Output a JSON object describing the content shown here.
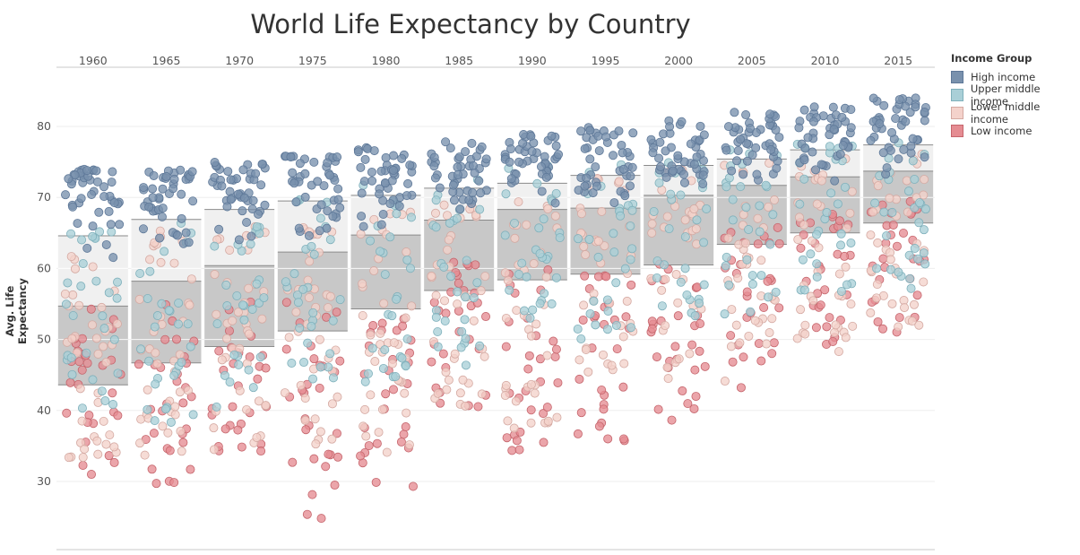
{
  "chart_data": {
    "type": "scatter",
    "title": "World Life Expectancy by Country",
    "xlabel": "",
    "ylabel": "Avg. Life Expectancy",
    "ylim": [
      22,
      88
    ],
    "yticks": [
      30,
      40,
      50,
      60,
      70,
      80
    ],
    "grid": true,
    "legend_placement": "right",
    "legend_title": "Income Group",
    "years": [
      "1960",
      "1965",
      "1970",
      "1975",
      "1980",
      "1985",
      "1990",
      "1995",
      "2000",
      "2005",
      "2010",
      "2015"
    ],
    "series": [
      {
        "name": "High income",
        "color": "#7991ad",
        "stroke": "#5e7898"
      },
      {
        "name": "Upper middle income",
        "color": "#a9cfd7",
        "stroke": "#7fb0bb"
      },
      {
        "name": "Lower middle income",
        "color": "#f4d2cb",
        "stroke": "#d4a9a2"
      },
      {
        "name": "Low income",
        "color": "#e58c92",
        "stroke": "#c5656c"
      }
    ],
    "boxes": [
      {
        "year": "1960",
        "q1": 43.6,
        "median": 54.7,
        "q3": 64.6
      },
      {
        "year": "1965",
        "q1": 46.7,
        "median": 58.2,
        "q3": 66.9
      },
      {
        "year": "1970",
        "q1": 49.0,
        "median": 60.4,
        "q3": 68.3
      },
      {
        "year": "1975",
        "q1": 51.2,
        "median": 62.3,
        "q3": 69.5
      },
      {
        "year": "1980",
        "q1": 54.3,
        "median": 64.7,
        "q3": 70.3
      },
      {
        "year": "1985",
        "q1": 56.9,
        "median": 66.8,
        "q3": 71.3
      },
      {
        "year": "1990",
        "q1": 58.4,
        "median": 68.3,
        "q3": 72.0
      },
      {
        "year": "1995",
        "q1": 59.2,
        "median": 68.5,
        "q3": 73.1
      },
      {
        "year": "2000",
        "q1": 60.5,
        "median": 70.3,
        "q3": 74.5
      },
      {
        "year": "2005",
        "q1": 63.4,
        "median": 71.7,
        "q3": 75.4
      },
      {
        "year": "2010",
        "q1": 65.0,
        "median": 72.9,
        "q3": 76.7
      },
      {
        "year": "2015",
        "q1": 66.4,
        "median": 73.7,
        "q3": 77.4
      }
    ],
    "points_per_group": {
      "High income": 45,
      "Upper middle income": 30,
      "Lower middle income": 40,
      "Low income": 30
    },
    "group_ranges": [
      {
        "year": "1960",
        "High income": [
          60,
          74
        ],
        "Upper middle income": [
          37,
          66
        ],
        "Lower middle income": [
          33,
          65
        ],
        "Low income": [
          28,
          55
        ]
      },
      {
        "year": "1965",
        "High income": [
          62,
          74
        ],
        "Upper middle income": [
          38,
          67
        ],
        "Lower middle income": [
          33,
          66
        ],
        "Low income": [
          29.5,
          55
        ]
      },
      {
        "year": "1970",
        "High income": [
          63,
          75
        ],
        "Upper middle income": [
          40,
          68
        ],
        "Lower middle income": [
          34,
          66
        ],
        "Low income": [
          32,
          56
        ]
      },
      {
        "year": "1975",
        "High income": [
          64,
          76
        ],
        "Upper middle income": [
          44,
          70
        ],
        "Lower middle income": [
          35,
          68
        ],
        "Low income": [
          24,
          56
        ]
      },
      {
        "year": "1980",
        "High income": [
          65,
          77
        ],
        "Upper middle income": [
          44,
          72
        ],
        "Lower middle income": [
          34,
          69
        ],
        "Low income": [
          28,
          58
        ]
      },
      {
        "year": "1985",
        "High income": [
          67,
          78
        ],
        "Upper middle income": [
          46,
          73
        ],
        "Lower middle income": [
          40,
          70
        ],
        "Low income": [
          40,
          61
        ]
      },
      {
        "year": "1990",
        "High income": [
          68,
          79
        ],
        "Upper middle income": [
          53,
          75
        ],
        "Lower middle income": [
          37,
          72
        ],
        "Low income": [
          34,
          62
        ]
      },
      {
        "year": "1995",
        "High income": [
          69,
          80
        ],
        "Upper middle income": [
          50,
          75
        ],
        "Lower middle income": [
          43,
          73
        ],
        "Low income": [
          32,
          60
        ]
      },
      {
        "year": "2000",
        "High income": [
          70,
          81
        ],
        "Upper middle income": [
          53,
          76
        ],
        "Lower middle income": [
          44,
          74
        ],
        "Low income": [
          38.5,
          62
        ]
      },
      {
        "year": "2005",
        "High income": [
          71,
          82
        ],
        "Upper middle income": [
          52,
          77
        ],
        "Lower middle income": [
          44,
          75
        ],
        "Low income": [
          43,
          66
        ]
      },
      {
        "year": "2010",
        "High income": [
          72,
          83
        ],
        "Upper middle income": [
          55,
          78
        ],
        "Lower middle income": [
          47,
          76
        ],
        "Low income": [
          47.5,
          68
        ]
      },
      {
        "year": "2015",
        "High income": [
          73,
          84
        ],
        "Upper middle income": [
          57,
          79
        ],
        "Lower middle income": [
          51,
          77
        ],
        "Low income": [
          51,
          70
        ]
      }
    ]
  }
}
